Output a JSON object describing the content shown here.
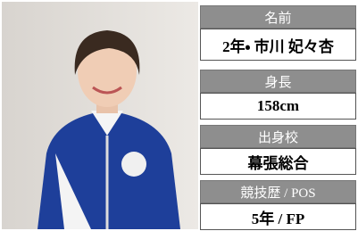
{
  "profile": {
    "fields": [
      {
        "label": "名前",
        "value": "2年・ 市川 妃々杏"
      },
      {
        "label": "身長",
        "value": "158cm"
      },
      {
        "label": "出身校",
        "value": "幕張総合"
      },
      {
        "label": "競技歴 / POS",
        "value": "5年 /  FP"
      }
    ]
  }
}
